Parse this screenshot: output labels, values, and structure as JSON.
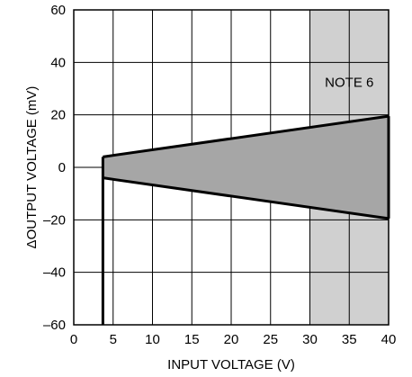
{
  "chart_data": {
    "type": "area",
    "title": "",
    "xlabel": "INPUT VOLTAGE (V)",
    "ylabel": "ΔOUTPUT VOLTAGE (mV)",
    "xlim": [
      0,
      40
    ],
    "ylim": [
      -60,
      60
    ],
    "x_ticks": [
      "0",
      "5",
      "10",
      "15",
      "20",
      "25",
      "30",
      "35",
      "40"
    ],
    "y_ticks": [
      "60",
      "40",
      "20",
      "0",
      "–20",
      "–40",
      "–60"
    ],
    "grid": true,
    "series": [
      {
        "x": [
          3.7,
          40
        ],
        "values": [
          4,
          19.5
        ]
      },
      {
        "x": [
          3.7,
          40
        ],
        "values": [
          -4,
          -19.5
        ]
      }
    ],
    "vertical_lines": [
      {
        "x": 3.7,
        "y_from": -60,
        "y_to": 4
      },
      {
        "x": 40,
        "y_from": -19.5,
        "y_to": 19.5
      }
    ],
    "shaded_region": {
      "x_from": 30,
      "x_to": 40,
      "color": "#d0d0d0"
    },
    "band_color": "#a6a6a6",
    "annotations": [
      {
        "text": "NOTE 6",
        "x": 35,
        "y": 29
      }
    ]
  }
}
